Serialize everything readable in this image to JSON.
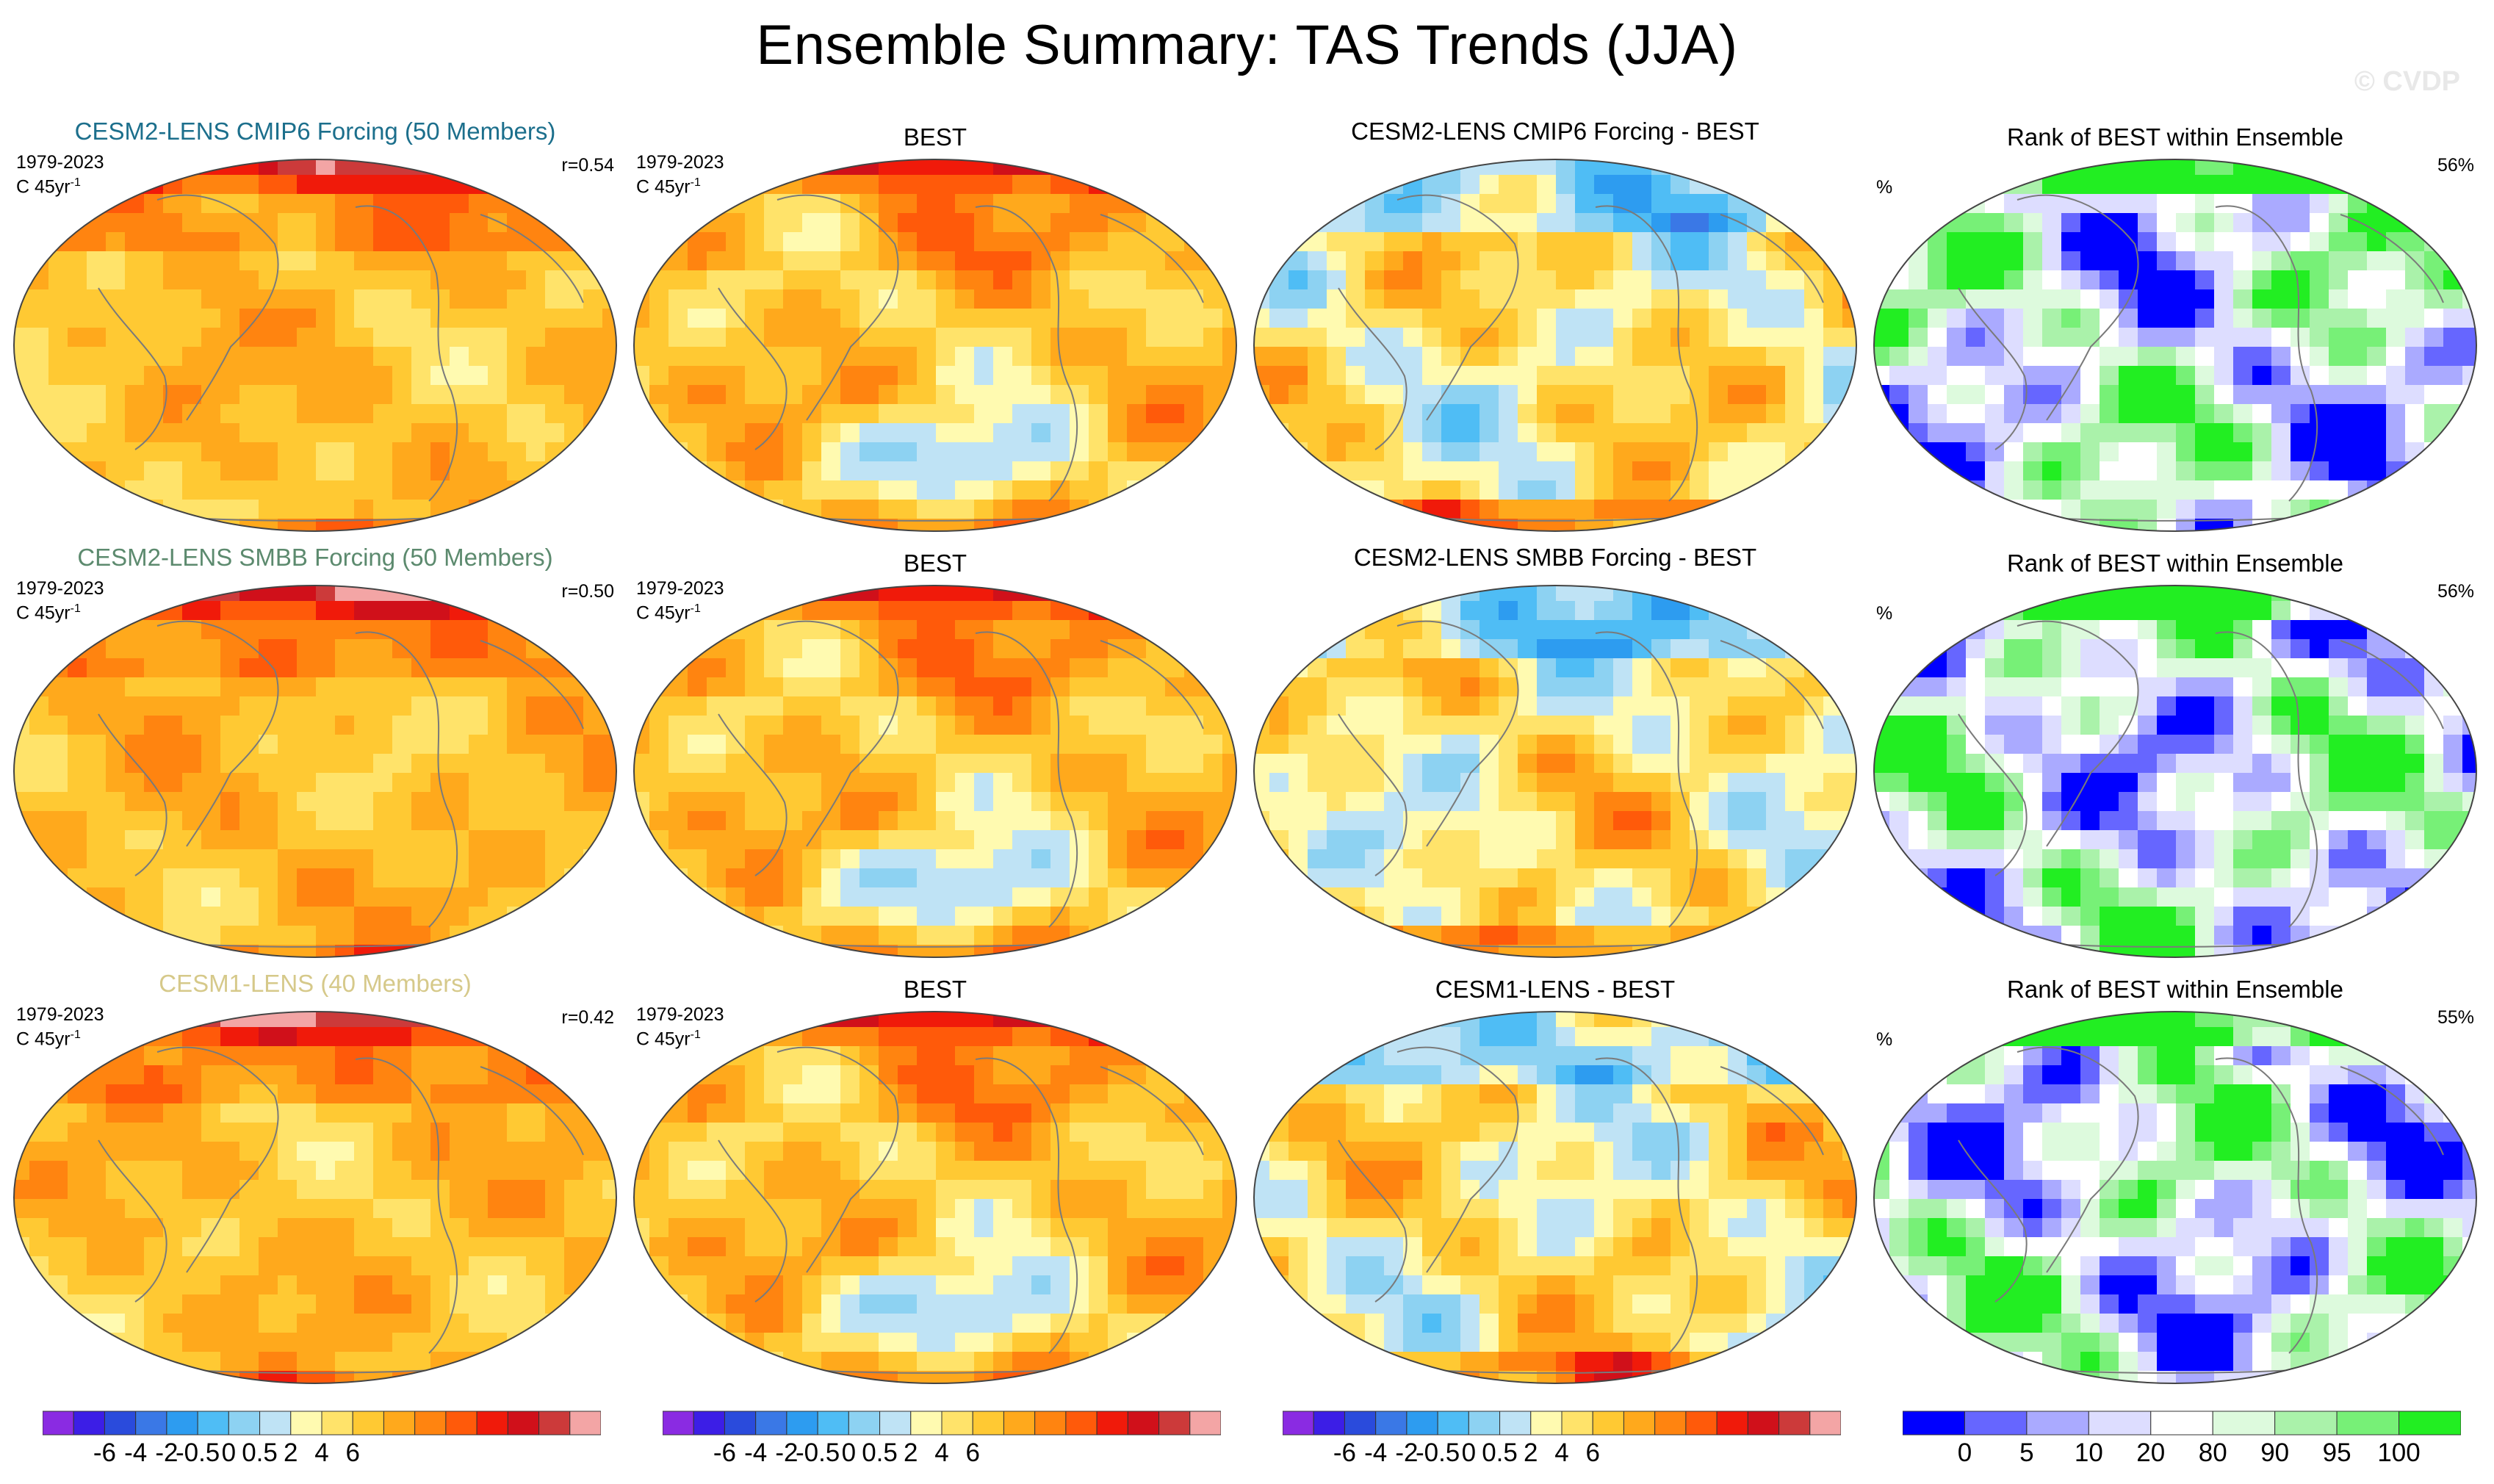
{
  "title": "Ensemble Summary: TAS Trends (JJA)",
  "watermark": "© CVDP",
  "colors": {
    "trend_scale": [
      "#8a2be2",
      "#3c1ee6",
      "#2a4bdc",
      "#3a78e6",
      "#2d9cf0",
      "#4fbdf5",
      "#8dd2f2",
      "#bfe3f5",
      "#fffab0",
      "#ffe36a",
      "#ffc933",
      "#ffa91c",
      "#ff8410",
      "#ff5a0a",
      "#f01a0a",
      "#d0101a",
      "#cc3a3a",
      "#f3a5a5"
    ],
    "rank_scale": [
      "#0000ff",
      "#6666ff",
      "#aaaaff",
      "#ddddff",
      "#ffffff",
      "#ddfadd",
      "#aaf2aa",
      "#77f077",
      "#22ee22"
    ],
    "land_outline": "#7a7a7a",
    "row_titles": [
      "#1c6f8c",
      "#5c8a6e",
      "#d6c98a"
    ]
  },
  "rows": [
    {
      "model_title": "CESM2-LENS CMIP6 Forcing (50 Members)",
      "period": "1979-2023",
      "units_base": "C 45yr",
      "units_exp": "-1",
      "r_value": "r=0.54",
      "obs_title": "BEST",
      "diff_title": "CESM2-LENS CMIP6 Forcing - BEST",
      "rank_title": "Rank of BEST within Ensemble",
      "rank_percent": "56%",
      "rank_unit": "%"
    },
    {
      "model_title": "CESM2-LENS SMBB Forcing (50 Members)",
      "period": "1979-2023",
      "units_base": "C 45yr",
      "units_exp": "-1",
      "r_value": "r=0.50",
      "obs_title": "BEST",
      "diff_title": "CESM2-LENS SMBB Forcing - BEST",
      "rank_title": "Rank of BEST within Ensemble",
      "rank_percent": "56%",
      "rank_unit": "%"
    },
    {
      "model_title": "CESM1-LENS (40 Members)",
      "period": "1979-2023",
      "units_base": "C 45yr",
      "units_exp": "-1",
      "r_value": "r=0.42",
      "obs_title": "BEST",
      "diff_title": "CESM1-LENS - BEST",
      "rank_title": "Rank of BEST within Ensemble",
      "rank_percent": "55%",
      "rank_unit": "%"
    }
  ],
  "colorbars": {
    "trend_labels": [
      "-6",
      "-4",
      "-2",
      "-0.5",
      "0",
      "0.5",
      "2",
      "4",
      "6"
    ],
    "rank_labels": [
      "0",
      "5",
      "10",
      "20",
      "80",
      "90",
      "95",
      "100"
    ]
  },
  "chart_data": {
    "type": "heatmap",
    "title": "Ensemble Summary: TAS Trends (JJA)",
    "variable": "TAS trend",
    "units": "C 45yr-1",
    "period": "1979-2023",
    "trend_colorbar_levels": [
      -6,
      -4,
      -2,
      -0.5,
      0,
      0.5,
      2,
      4,
      6
    ],
    "rank_colorbar_levels": [
      0,
      5,
      10,
      20,
      80,
      90,
      95,
      100
    ],
    "pattern_correlations": [
      0.54,
      0.5,
      0.42
    ],
    "rank_percent_within": [
      56,
      56,
      55
    ]
  }
}
